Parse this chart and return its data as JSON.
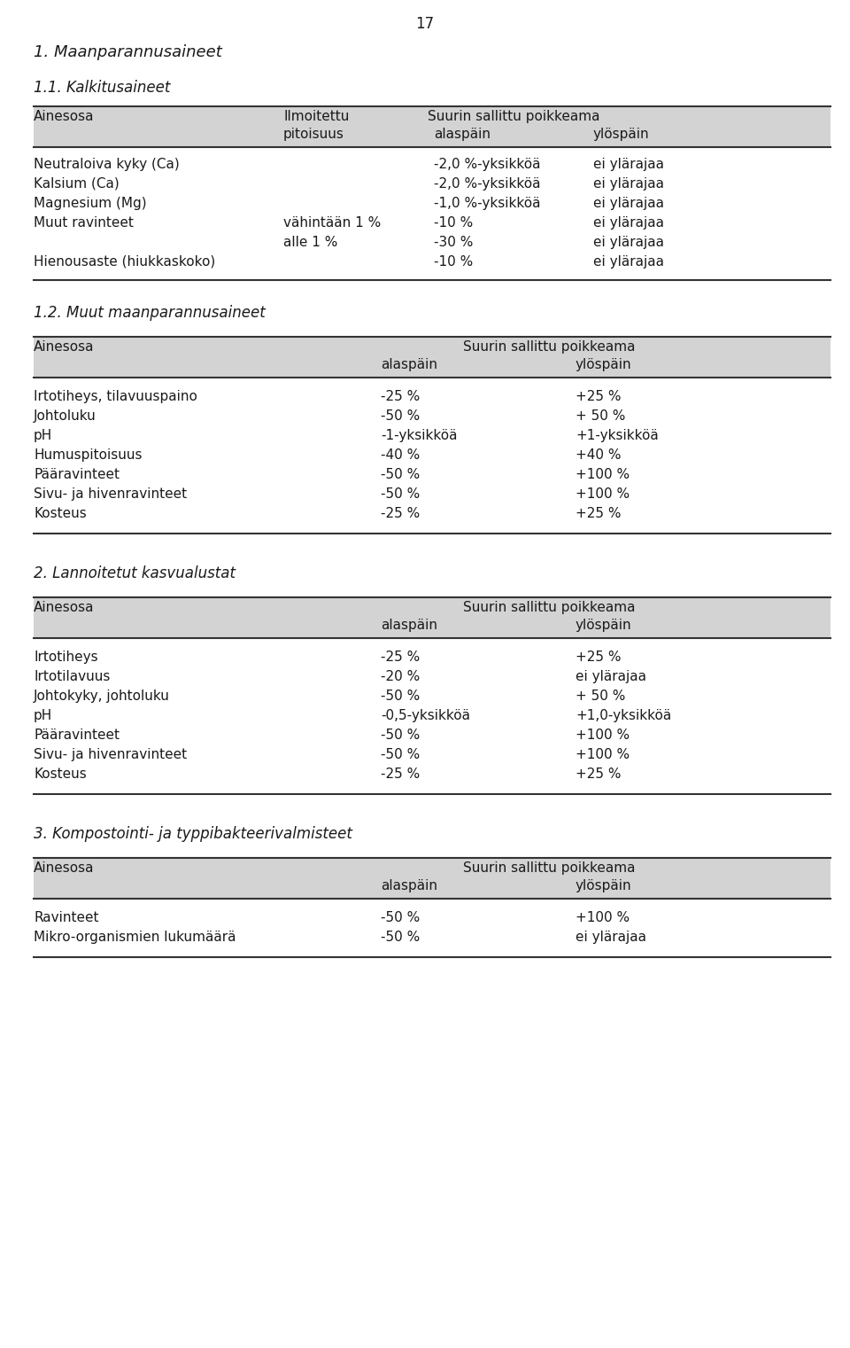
{
  "page_number": "17",
  "bg_color": "#ffffff",
  "text_color": "#1a1a1a",
  "header_bg": "#d9d9d9",
  "font_size_body": 11,
  "font_size_heading1": 13,
  "font_size_heading2": 12,
  "font_size_pagenum": 12,
  "section1_heading": "1. Maanparannusaineet",
  "section11_heading": "1.1. Kalkitusaineet",
  "table1_headers": [
    "Ainesosa",
    "Ilmoitettu\npitoisuus",
    "alaspäin",
    "ylöspäin"
  ],
  "table1_superheader_col": 1,
  "table1_superheader": "Suurin sallittu poikkeama",
  "table1_rows": [
    [
      "Neutraloiva kyky (Ca)",
      "",
      "-2,0 %-yksikköä",
      "ei ylärajaa"
    ],
    [
      "Kalsium (Ca)",
      "",
      "-2,0 %-yksikköä",
      "ei ylärajaa"
    ],
    [
      "Magnesium (Mg)",
      "",
      "-1,0 %-yksikköä",
      "ei ylärajaa"
    ],
    [
      "Muut ravinteet",
      "vähintään 1 %",
      "-10 %",
      "ei ylärajaa"
    ],
    [
      "",
      "alle 1 %",
      "-30 %",
      "ei ylärajaa"
    ],
    [
      "Hienousaste (hiukkaskoko)",
      "",
      "-10 %",
      "ei ylärajaa"
    ]
  ],
  "section12_heading": "1.2. Muut maanparannusaineet",
  "table2_headers": [
    "Ainesosa",
    "alaspäin",
    "ylöspäin"
  ],
  "table2_superheader": "Suurin sallittu poikkeama",
  "table2_rows": [
    [
      "Irtotiheys, tilavuuspaino",
      "-25 %",
      "+25 %"
    ],
    [
      "Johtoluku",
      "-50 %",
      "+ 50 %"
    ],
    [
      "pH",
      "-1-yksikköä",
      "+1-yksikköä"
    ],
    [
      "Humuspitoisuus",
      "-40 %",
      "+40 %"
    ],
    [
      "Pääravinteet",
      "-50 %",
      "+100 %"
    ],
    [
      "Sivu- ja hivenravinteet",
      "-50 %",
      "+100 %"
    ],
    [
      "Kosteus",
      "-25 %",
      "+25 %"
    ]
  ],
  "section2_heading": "2. Lannoitetut kasvualustat",
  "table3_headers": [
    "Ainesosa",
    "alaspäin",
    "ylöspäin"
  ],
  "table3_superheader": "Suurin sallittu poikkeama",
  "table3_rows": [
    [
      "Irtotiheys",
      "-25 %",
      "+25 %"
    ],
    [
      "Irtotilavuus",
      "-20 %",
      "ei ylärajaa"
    ],
    [
      "Johtokyky, johtoluku",
      "-50 %",
      "+ 50 %"
    ],
    [
      "pH",
      "-0,5-yksikköä",
      "+1,0-yksikköä"
    ],
    [
      "Pääravinteet",
      "-50 %",
      "+100 %"
    ],
    [
      "Sivu- ja hivenravinteet",
      "-50 %",
      "+100 %"
    ],
    [
      "Kosteus",
      "-25 %",
      "+25 %"
    ]
  ],
  "section3_heading": "3. Kompostointi- ja typpibakteerivalmisteet",
  "table4_headers": [
    "Ainesosa",
    "alaspäin",
    "ylöspäin"
  ],
  "table4_superheader": "Suurin sallittu poikkeama",
  "table4_rows": [
    [
      "Ravinteet",
      "-50 %",
      "+100 %"
    ],
    [
      "Mikro-organismien lukumäärä",
      "-50 %",
      "ei ylärajaa"
    ]
  ]
}
